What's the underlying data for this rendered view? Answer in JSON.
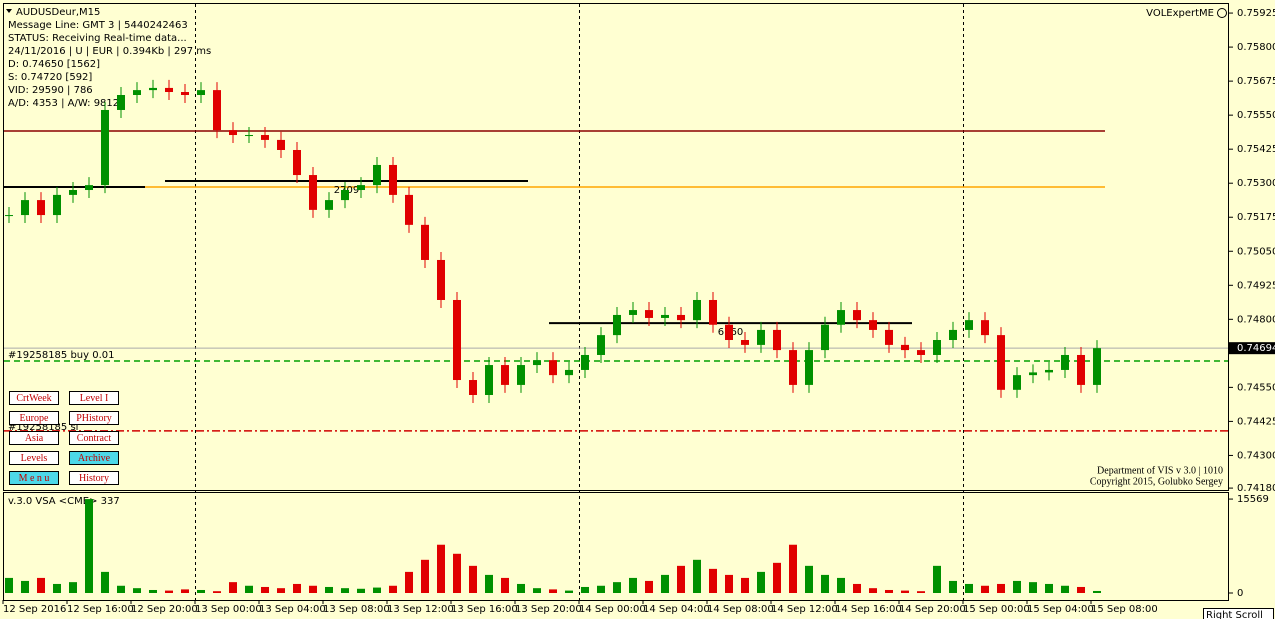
{
  "header": {
    "symbol": "AUDUSDeur,M15",
    "expert": "VOLExpertME",
    "info": [
      "Message Line: GMT 3 | 5440242463",
      "STATUS:  Receiving Real-time data...",
      "24/11/2016 | U | EUR | 0.394Kb | 297 ms",
      "D: 0.74650  [1562]",
      "S: 0.74720  [592]",
      "VID: 29590 | 786",
      "A/D: 4353 | A/W: 9812"
    ]
  },
  "price_chart": {
    "type": "candlestick",
    "up_color": "#009000",
    "down_color": "#e00000",
    "closes": [
      0.75183,
      0.75238,
      0.75183,
      0.75257,
      0.75275,
      0.75293,
      0.75569,
      0.75624,
      0.75642,
      0.7565,
      0.75635,
      0.75624,
      0.75642,
      0.75495,
      0.75477,
      0.75477,
      0.75459,
      0.75422,
      0.7533,
      0.75202,
      0.75238,
      0.75275,
      0.75293,
      0.75367,
      0.75257,
      0.75147,
      0.75018,
      0.74871,
      0.74577,
      0.74522,
      0.74632,
      0.74559,
      0.74632,
      0.7465,
      0.74595,
      0.74614,
      0.74669,
      0.74742,
      0.74816,
      0.74834,
      0.74805,
      0.74816,
      0.74797,
      0.74871,
      0.7478,
      0.74724,
      0.74706,
      0.74761,
      0.74687,
      0.74559,
      0.74687,
      0.7478,
      0.74834,
      0.74797,
      0.74761,
      0.74706,
      0.74687,
      0.74669,
      0.74724,
      0.74761,
      0.74797,
      0.74742,
      0.74541,
      0.74595,
      0.74605,
      0.74614,
      0.74669,
      0.74559,
      0.74694
    ],
    "ylim": [
      0.74173,
      0.75973
    ],
    "yticks": [
      0.75925,
      {
        "value": 0.758,
        "label": "0.75800"
      },
      0.75675,
      {
        "value": 0.7555,
        "label": "0.75550"
      },
      0.75425,
      {
        "value": 0.753,
        "label": "0.75300"
      },
      0.75175,
      {
        "value": 0.7505,
        "label": "0.75050"
      },
      0.74925,
      {
        "value": 0.748,
        "label": "0.74800"
      },
      {
        "value": 0.7455,
        "label": "0.74550"
      },
      0.74425,
      {
        "value": 0.743,
        "label": "0.74300"
      },
      {
        "value": 0.7418,
        "label": "0.74180"
      }
    ],
    "time_labels": [
      "12 Sep 2016",
      "12 Sep 16:00",
      "12 Sep 20:00",
      "13 Sep 00:00",
      "13 Sep 04:00",
      "13 Sep 08:00",
      "13 Sep 12:00",
      "13 Sep 16:00",
      "13 Sep 20:00",
      "14 Sep 00:00",
      "14 Sep 04:00",
      "14 Sep 08:00",
      "14 Sep 12:00",
      "14 Sep 16:00",
      "14 Sep 20:00",
      "15 Sep 00:00",
      "15 Sep 04:00",
      "15 Sep 08:00"
    ],
    "levels": [
      {
        "price": 0.75492,
        "color": "#8b0000"
      },
      {
        "price": 0.75286,
        "color": "#ffa500"
      },
      {
        "price": 0.75286,
        "color": "#000000"
      },
      {
        "price": 0.75308,
        "color": "#000000",
        "label": "2709"
      },
      {
        "price": 0.74786,
        "color": "#000000",
        "label": "6760"
      },
      {
        "price": 0.74647,
        "color": "#00a000"
      },
      {
        "price": 0.7439,
        "color": "#d00000"
      }
    ],
    "order": "#19258185 buy 0.01",
    "stop": "#19258185 sl",
    "footer": [
      "Department of VIS  v 3.0 | 1010",
      "Copyright 2015, Golubko Sergey"
    ]
  },
  "volume_chart": {
    "type": "bar",
    "title": "v.3.0 VSA <CME>",
    "values": [
      2500,
      2000,
      2500,
      1500,
      1800,
      15569,
      3500,
      1200,
      800,
      500,
      400,
      600,
      500,
      300,
      1800,
      1200,
      1000,
      800,
      1500,
      1200,
      1000,
      800,
      700,
      900,
      1200,
      3500,
      5500,
      8000,
      6500,
      4500,
      3000,
      2500,
      1500,
      800,
      600,
      400,
      1000,
      1200,
      1800,
      2500,
      2000,
      3000,
      4500,
      5500,
      4000,
      3000,
      2500,
      3500,
      5000,
      8000,
      4500,
      3000,
      2500,
      1500,
      800,
      500,
      400,
      300,
      4500,
      2000,
      1500,
      1200,
      1500,
      2000,
      1800,
      1500,
      1200,
      1000,
      337
    ],
    "ylim": [
      0,
      16741
    ],
    "yticks": [
      15569,
      0
    ]
  },
  "buttons": [
    "CrtWeek",
    "Level I",
    "Europe",
    "PHistory",
    "Asia",
    "Contract",
    "Levels",
    "Archive",
    "M e n u",
    "History"
  ],
  "scroll": "Right Scroll"
}
